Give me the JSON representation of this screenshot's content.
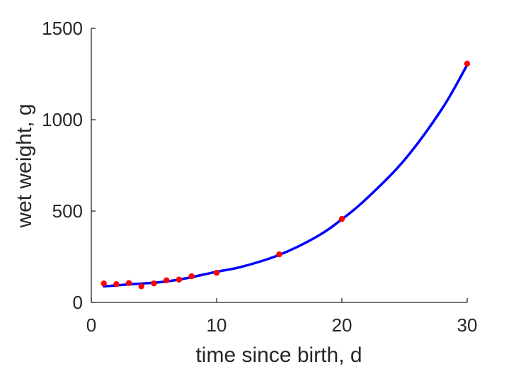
{
  "chart_data": {
    "type": "scatter",
    "xlabel": "time since birth, d",
    "ylabel": "wet weight, g",
    "xlim": [
      0,
      30
    ],
    "ylim": [
      0,
      1500
    ],
    "xticks": [
      0,
      10,
      20,
      30
    ],
    "yticks": [
      0,
      500,
      1000,
      1500
    ],
    "grid": false,
    "legend": "none",
    "series": [
      {
        "type": "scatter",
        "color": "#ff0000",
        "points": [
          {
            "x": 1,
            "y": 104
          },
          {
            "x": 2,
            "y": 100
          },
          {
            "x": 3,
            "y": 106
          },
          {
            "x": 4,
            "y": 88
          },
          {
            "x": 5,
            "y": 104
          },
          {
            "x": 6,
            "y": 121
          },
          {
            "x": 7,
            "y": 125
          },
          {
            "x": 8,
            "y": 143
          },
          {
            "x": 10,
            "y": 162
          },
          {
            "x": 15,
            "y": 263
          },
          {
            "x": 20,
            "y": 457
          },
          {
            "x": 30,
            "y": 1307
          }
        ]
      },
      {
        "type": "line",
        "color": "#0000ff",
        "points": [
          {
            "x": 1,
            "y": 88
          },
          {
            "x": 2,
            "y": 93
          },
          {
            "x": 3,
            "y": 99
          },
          {
            "x": 4,
            "y": 103
          },
          {
            "x": 5,
            "y": 108
          },
          {
            "x": 6,
            "y": 115
          },
          {
            "x": 7,
            "y": 125
          },
          {
            "x": 8,
            "y": 138
          },
          {
            "x": 10,
            "y": 168
          },
          {
            "x": 12,
            "y": 195
          },
          {
            "x": 15,
            "y": 260
          },
          {
            "x": 18,
            "y": 360
          },
          {
            "x": 20,
            "y": 455
          },
          {
            "x": 22,
            "y": 570
          },
          {
            "x": 25,
            "y": 780
          },
          {
            "x": 28,
            "y": 1060
          },
          {
            "x": 30,
            "y": 1300
          }
        ]
      }
    ]
  }
}
